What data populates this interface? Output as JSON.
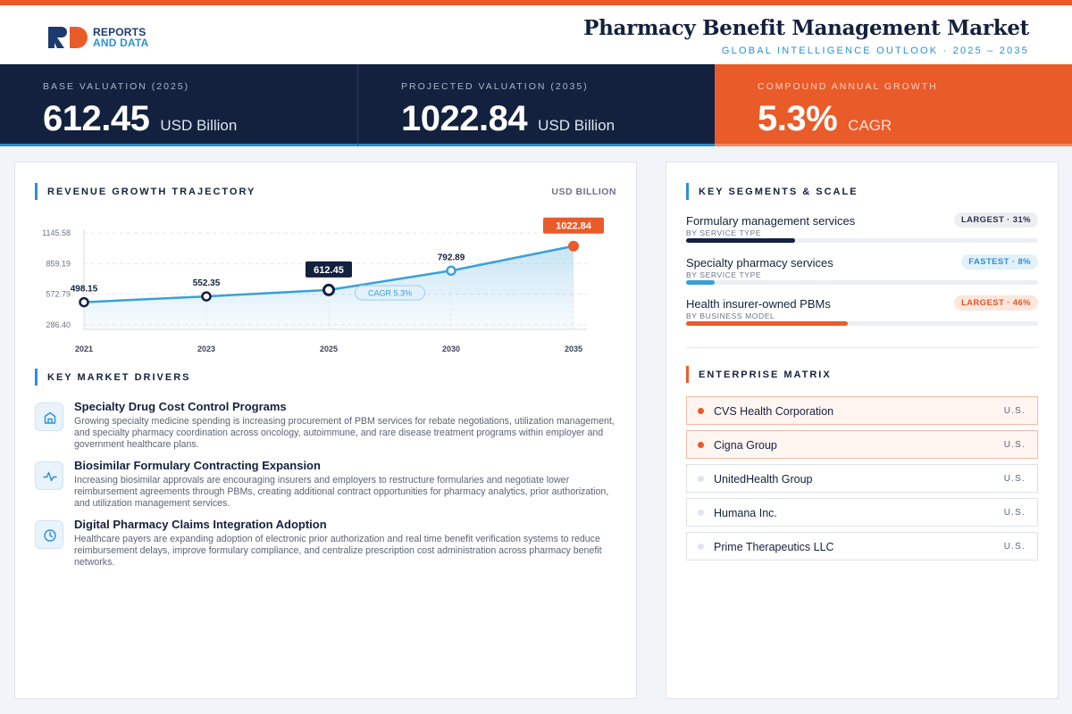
{
  "header": {
    "logo_line1": "REPORTS",
    "logo_line2": "AND DATA",
    "title": "Pharmacy Benefit Management Market",
    "subtitle": "GLOBAL INTELLIGENCE OUTLOOK  ·  2025 – 2035"
  },
  "kpis": [
    {
      "label": "BASE VALUATION (2025)",
      "value": "612.45",
      "unit": "USD Billion"
    },
    {
      "label": "PROJECTED VALUATION (2035)",
      "value": "1022.84",
      "unit": "USD Billion"
    },
    {
      "label": "COMPOUND ANNUAL GROWTH",
      "value": "5.3%",
      "unit": "CAGR"
    }
  ],
  "trajectory": {
    "title": "REVENUE GROWTH TRAJECTORY",
    "unit": "USD BILLION"
  },
  "chart_data": {
    "type": "line",
    "title": "",
    "xlabel": "",
    "ylabel": "",
    "categories": [
      "2021",
      "2023",
      "2025",
      "2030",
      "2035"
    ],
    "series": [
      {
        "values": [
          498.15,
          552.35,
          612.45,
          792.89,
          1022.84
        ]
      }
    ],
    "data_labels": [
      "498.15",
      "552.35",
      "612.45",
      "792.89",
      "1022.84"
    ],
    "y_ticks": [
      286.4,
      572.79,
      859.19,
      1145.58
    ],
    "y_tick_labels": [
      "286.40",
      "572.79",
      "859.19",
      "1145.58"
    ],
    "ylim": [
      286.4,
      1145.58
    ],
    "grid": true,
    "annotation": "CAGR 5.3%",
    "colors": {
      "line": "#3aa0d8",
      "highlight": "#13213f",
      "end": "#ea5b2a"
    }
  },
  "drivers": {
    "title": "KEY MARKET DRIVERS",
    "items": [
      {
        "icon": "building-icon",
        "title": "Specialty Drug Cost Control Programs",
        "text": "Growing specialty medicine spending is increasing procurement of PBM services for rebate negotiations, utilization management, and specialty pharmacy coordination across oncology, autoimmune, and rare disease treatment programs within employer and government healthcare plans."
      },
      {
        "icon": "pulse-icon",
        "title": "Biosimilar Formulary Contracting Expansion",
        "text": "Increasing biosimilar approvals are encouraging insurers and employers to restructure formularies and negotiate lower reimbursement agreements through PBMs, creating additional contract opportunities for pharmacy analytics, prior authorization, and utilization management services."
      },
      {
        "icon": "clock-icon",
        "title": "Digital Pharmacy Claims Integration Adoption",
        "text": "Healthcare payers are expanding adoption of electronic prior authorization and real time benefit verification systems to reduce reimbursement delays, improve formulary compliance, and centralize prescription cost administration across pharmacy benefit networks."
      }
    ]
  },
  "segments": {
    "title": "KEY SEGMENTS & SCALE",
    "items": [
      {
        "name": "Formulary management services",
        "category": "BY SERVICE TYPE",
        "badge": "LARGEST · 31%",
        "share": 0.31,
        "color": "#13213f"
      },
      {
        "name": "Specialty pharmacy services",
        "category": "BY SERVICE TYPE",
        "badge": "FASTEST · 8%",
        "share": 0.08,
        "color": "#3aa0d8"
      },
      {
        "name": "Health insurer-owned PBMs",
        "category": "BY BUSINESS MODEL",
        "badge": "LARGEST · 46%",
        "share": 0.46,
        "color": "#ea5b2a"
      }
    ]
  },
  "enterprise": {
    "title": "ENTERPRISE MATRIX",
    "items": [
      {
        "name": "CVS Health Corporation",
        "country": "U.S.",
        "highlighted": true
      },
      {
        "name": "Cigna Group",
        "country": "U.S.",
        "highlighted": true
      },
      {
        "name": "UnitedHealth Group",
        "country": "U.S.",
        "highlighted": false
      },
      {
        "name": "Humana Inc.",
        "country": "U.S.",
        "highlighted": false
      },
      {
        "name": "Prime Therapeutics LLC",
        "country": "U.S.",
        "highlighted": false
      }
    ]
  }
}
